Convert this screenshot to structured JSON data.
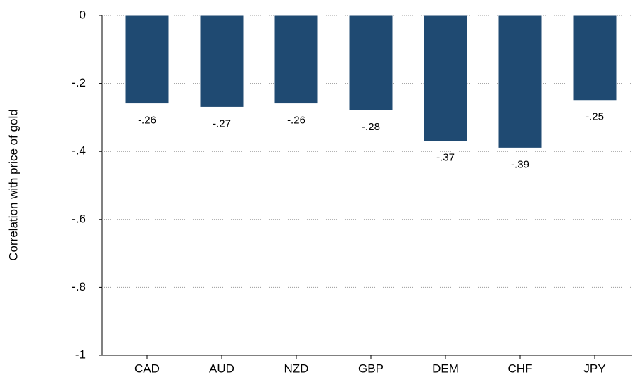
{
  "chart_data": {
    "type": "bar",
    "ylabel": "Correlation with price of gold",
    "categories": [
      "CAD",
      "AUD",
      "NZD",
      "GBP",
      "DEM",
      "CHF",
      "JPY"
    ],
    "values": [
      -0.26,
      -0.27,
      -0.26,
      -0.28,
      -0.37,
      -0.39,
      -0.25
    ],
    "value_labels": [
      "-.26",
      "-.27",
      "-.26",
      "-.28",
      "-.37",
      "-.39",
      "-.25"
    ],
    "color": "#1f4a72",
    "ylim": [
      -1,
      0
    ],
    "yticks": [
      0,
      {
        "value": -0.2,
        "label": "-.2"
      },
      {
        "value": -0.4,
        "label": "-.4"
      },
      {
        "value": -0.6,
        "label": "-.6"
      },
      {
        "value": -0.8,
        "label": "-.8"
      },
      -1
    ],
    "grid": true
  }
}
